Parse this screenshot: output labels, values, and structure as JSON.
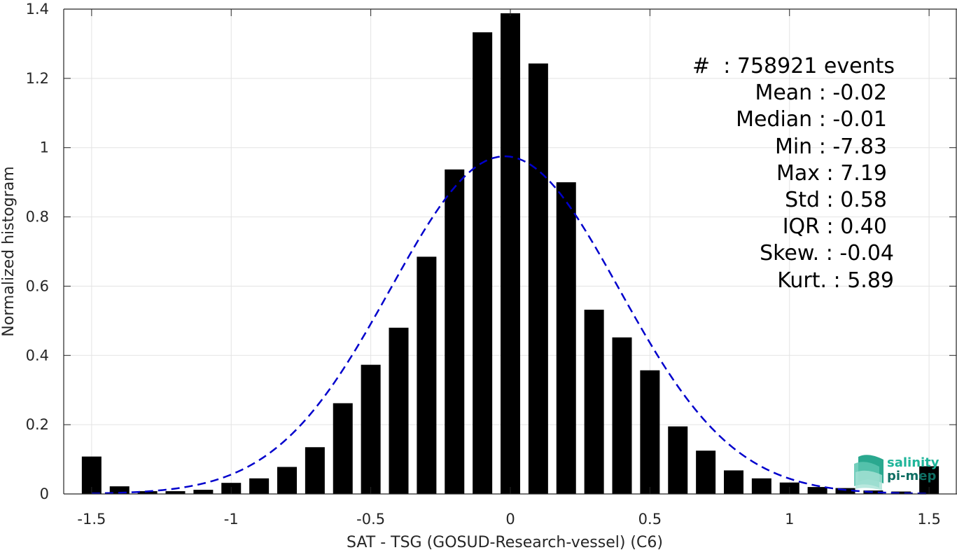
{
  "chart_data": {
    "type": "bar",
    "xlabel": "SAT - TSG (GOSUD-Research-vessel) (C6)",
    "ylabel": "Normalized histogram",
    "xlim": [
      -1.6,
      1.6
    ],
    "ylim": [
      0,
      1.4
    ],
    "grid": true,
    "x_ticks": [
      -1.5,
      -1,
      -0.5,
      0,
      0.5,
      1,
      1.5
    ],
    "x_tick_labels": [
      "-1.5",
      "-1",
      "-0.5",
      "0",
      "0.5",
      "1",
      "1.5"
    ],
    "y_ticks": [
      0,
      0.2,
      0.4,
      0.6,
      0.8,
      1,
      1.2,
      1.4
    ],
    "y_tick_labels": [
      "0",
      "0.2",
      "0.4",
      "0.6",
      "0.8",
      "1",
      "1.2",
      "1.4"
    ],
    "bin_width": 0.1,
    "bar_color": "#000000",
    "bins": [
      -1.5,
      -1.4,
      -1.3,
      -1.2,
      -1.1,
      -1.0,
      -0.9,
      -0.8,
      -0.7,
      -0.6,
      -0.5,
      -0.4,
      -0.3,
      -0.2,
      -0.1,
      0.0,
      0.1,
      0.2,
      0.3,
      0.4,
      0.5,
      0.6,
      0.7,
      0.8,
      0.9,
      1.0,
      1.1,
      1.2,
      1.3,
      1.4,
      1.5
    ],
    "values": [
      0.108,
      0.022,
      0.008,
      0.008,
      0.012,
      0.032,
      0.045,
      0.078,
      0.135,
      0.262,
      0.373,
      0.48,
      0.685,
      0.937,
      1.333,
      1.388,
      1.243,
      0.9,
      0.532,
      0.452,
      0.357,
      0.195,
      0.125,
      0.068,
      0.045,
      0.033,
      0.02,
      0.017,
      0.01,
      0.007,
      0.08
    ],
    "fit_curve": {
      "type": "gaussian",
      "mean": -0.02,
      "std": 0.41,
      "peak": 0.975,
      "x_range": [
        -1.5,
        1.5
      ],
      "color": "#0000cc",
      "style": "dashed"
    }
  },
  "stats": {
    "lines": [
      "#  : 758921 events",
      "Mean : -0.02",
      "Median : -0.01",
      "Min : -7.83",
      "Max : 7.19",
      "Std : 0.58",
      "IQR : 0.40",
      "Skew. : -0.04",
      "Kurt. : 5.89"
    ]
  },
  "logo": {
    "line1": "salinity",
    "line2": "pi-mep",
    "color1": "#1fb59a",
    "color2": "#0f6e63"
  }
}
